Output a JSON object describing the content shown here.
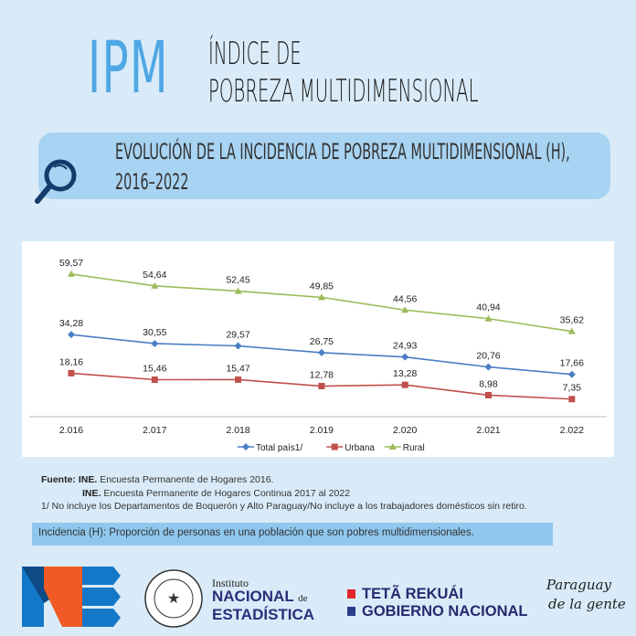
{
  "header": {
    "logo_text": "IPM",
    "title_line1": "ÍNDICE DE",
    "title_line2": "POBREZA MULTIDIMENSIONAL"
  },
  "banner": {
    "line1": "EVOLUCIÓN DE LA INCIDENCIA DE POBREZA MULTIDIMENSIONAL (H),",
    "line2": "2016–2022",
    "icon": "magnifier-icon"
  },
  "chart_data": {
    "type": "line",
    "categories": [
      "2.016",
      "2.017",
      "2.018",
      "2.019",
      "2.020",
      "2.021",
      "2.022"
    ],
    "series": [
      {
        "name": "Total país1/",
        "color": "#4a7ec4",
        "marker": "diamond",
        "values": [
          34.28,
          30.55,
          29.57,
          26.75,
          24.93,
          20.76,
          17.66
        ],
        "labels": [
          "34,28",
          "30,55",
          "29,57",
          "26,75",
          "24,93",
          "20,76",
          "17,66"
        ]
      },
      {
        "name": "Urbana",
        "color": "#c0504d",
        "marker": "square",
        "values": [
          18.16,
          15.46,
          15.47,
          12.78,
          13.28,
          8.98,
          7.35
        ],
        "labels": [
          "18,16",
          "15,46",
          "15,47",
          "12,78",
          "13,28",
          "8,98",
          "7,35"
        ]
      },
      {
        "name": "Rural",
        "color": "#9bbb59",
        "marker": "triangle",
        "values": [
          59.57,
          54.64,
          52.45,
          49.85,
          44.56,
          40.94,
          35.62
        ],
        "labels": [
          "59,57",
          "54,64",
          "52,45",
          "49,85",
          "44,56",
          "40,94",
          "35,62"
        ]
      }
    ],
    "legend": "bottom",
    "grid": false
  },
  "notes": {
    "source_label": "Fuente:",
    "source1_org": "INE.",
    "source1": "Encuesta Permanente de Hogares 2016.",
    "source2_org": "INE.",
    "source2": "Encuesta Permanente de Hogares Continua  2017 al  2022",
    "footnote": "1/ No incluye los Departamentos de Boquerón y Alto Paraguay/No incluye a los trabajadores domésticos sin retiro."
  },
  "definition": "Incidencia (H): Proporción de personas en una población que son pobres multidimensionales.",
  "footer": {
    "inst_line1": "Instituto",
    "inst_line2": "NACIONAL",
    "inst_de": "de",
    "inst_line3": "ESTADÍSTICA",
    "gov_line1": "TETÃ REKUÁI",
    "gov_line2": "GOBIERNO NACIONAL",
    "slogan1": "Paraguay",
    "slogan2": "de la gente",
    "seal_text": "REPÚBLICA DEL PARAGUAY"
  }
}
